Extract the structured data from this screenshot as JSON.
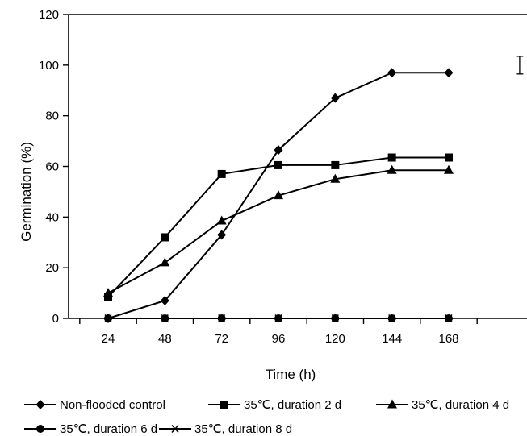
{
  "chart_data": {
    "type": "line",
    "title": "",
    "xlabel": "Time (h)",
    "ylabel": "Germination (%)",
    "x": [
      24,
      48,
      72,
      96,
      120,
      144,
      168
    ],
    "x_tick_labels": [
      "24",
      "48",
      "72",
      "96",
      "120",
      "144",
      "168"
    ],
    "ylim": [
      0,
      120
    ],
    "y_ticks": [
      0,
      20,
      40,
      60,
      80,
      100,
      120
    ],
    "y_tick_labels": [
      "0",
      "20",
      "40",
      "60",
      "80",
      "100",
      "120"
    ],
    "grid": false,
    "legend_position": "bottom",
    "error_bar": {
      "x": 198,
      "center": 100,
      "half_range": 3.5
    },
    "series": [
      {
        "name": "Non-flooded control",
        "marker": "diamond",
        "values": [
          0,
          7,
          33,
          66.5,
          87,
          97,
          97
        ]
      },
      {
        "name": "35℃, duration 2 d",
        "marker": "square",
        "values": [
          8.5,
          32,
          57,
          60.5,
          60.5,
          63.5,
          63.5
        ]
      },
      {
        "name": "35℃, duration 4 d",
        "marker": "triangle",
        "values": [
          10,
          22,
          38.5,
          48.5,
          55,
          58.5,
          58.5
        ]
      },
      {
        "name": "35℃, duration 6 d",
        "marker": "circle",
        "values": [
          0,
          0,
          0,
          0,
          0,
          0,
          0
        ]
      },
      {
        "name": "35℃, duration 8 d",
        "marker": "asterisk",
        "values": [
          0,
          0,
          0,
          0,
          0,
          0,
          0
        ]
      }
    ]
  }
}
